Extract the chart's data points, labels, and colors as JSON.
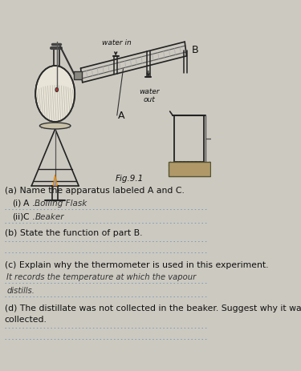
{
  "bg_color": "#ccc9c0",
  "text_color": "#111111",
  "handwritten_color": "#333333",
  "dotted_color": "#7799bb",
  "label_water_in": "water in",
  "label_water_out": "water\nout",
  "label_A": "A",
  "label_B": "B",
  "label_fig": "Fig.9.1",
  "question_a": "(a) Name the apparatus labeled A and C.",
  "q_ai_prefix": "(i)    A ...",
  "q_ai_answer": "Boiling Flask",
  "q_aii_prefix": "(ii)   C ...",
  "q_aii_answer": "Beaker",
  "question_b": "(b) State the function of part B.",
  "question_c": "(c) Explain why the thermometer is used in this experiment.",
  "answer_c1": "It records the temperature at which the vapour",
  "answer_c2": "distills.",
  "question_d1": "(d) The distillate was not collected in the beaker. Suggest why it was not",
  "question_d2": "     collected.",
  "diagram_scale": 1.0
}
